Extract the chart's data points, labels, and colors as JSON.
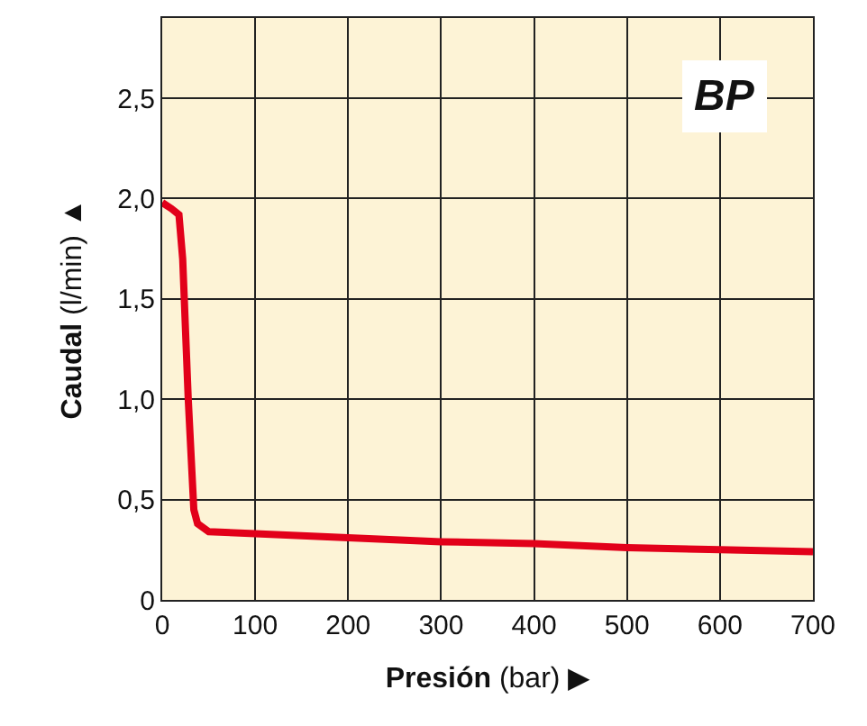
{
  "chart_data": {
    "type": "line",
    "xlabel": "Presión (bar) ▶",
    "ylabel": "Caudal (l/min) ▲",
    "annotations": [
      "BP"
    ],
    "x": [
      0,
      10,
      18,
      22,
      28,
      34,
      38,
      50,
      100,
      200,
      300,
      400,
      500,
      600,
      700
    ],
    "series": [
      {
        "color": "#e2001a",
        "values": [
          1.98,
          1.95,
          1.92,
          1.7,
          1.0,
          0.45,
          0.38,
          0.34,
          0.33,
          0.31,
          0.29,
          0.28,
          0.26,
          0.25,
          0.24
        ]
      }
    ],
    "xlim": [
      0,
      700
    ],
    "xticks": [
      0,
      100,
      200,
      300,
      400,
      500,
      600,
      700
    ],
    "ylim": [
      0,
      2.9
    ],
    "yticks": [
      0,
      {
        "value": 0.5,
        "label": "0,5"
      },
      {
        "value": 1.0,
        "label": "1,0"
      },
      {
        "value": 1.5,
        "label": "1,5"
      },
      {
        "value": 2.0,
        "label": "2,0"
      },
      {
        "value": 2.5,
        "label": "2,5"
      }
    ],
    "grid": true,
    "marker": "none",
    "line_style": "solid"
  }
}
